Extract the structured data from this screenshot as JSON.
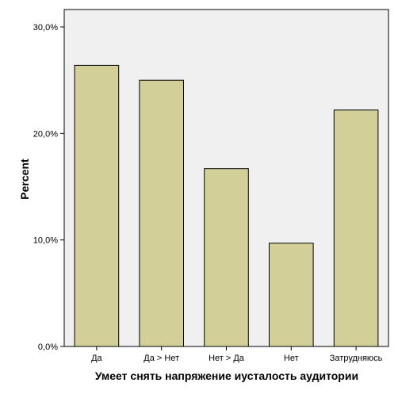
{
  "chart_data": {
    "type": "bar",
    "title": "",
    "xlabel": "Умеет снять напряжение иусталость аудитории",
    "ylabel": "Percent",
    "categories": [
      "Да",
      "Да > Нет",
      "Нет > Да",
      "Нет",
      "Затрудняюсь"
    ],
    "values": [
      26.4,
      25.0,
      16.7,
      9.7,
      22.2
    ],
    "ylim": [
      0,
      30
    ],
    "yticks": [
      {
        "value": 0,
        "label": "0,0%"
      },
      {
        "value": 10,
        "label": "10,0%"
      },
      {
        "value": 20,
        "label": "20,0%"
      },
      {
        "value": 30,
        "label": "30,0%"
      }
    ],
    "grid": false,
    "colors": {
      "plot_background": "#f0f0f0",
      "bar_fill": "#d3cf99",
      "bar_stroke": "#000000"
    }
  }
}
